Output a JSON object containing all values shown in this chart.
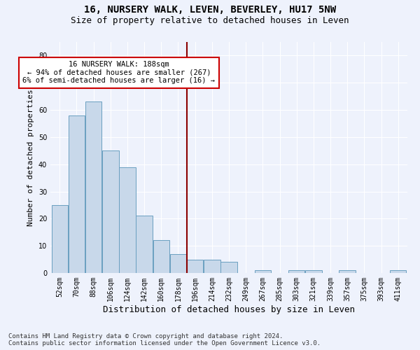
{
  "title": "16, NURSERY WALK, LEVEN, BEVERLEY, HU17 5NW",
  "subtitle": "Size of property relative to detached houses in Leven",
  "xlabel": "Distribution of detached houses by size in Leven",
  "ylabel": "Number of detached properties",
  "bar_color": "#c8d8ea",
  "bar_edge_color": "#6a9fc0",
  "background_color": "#eef2fc",
  "grid_color": "#ffffff",
  "bins": [
    "52sqm",
    "70sqm",
    "88sqm",
    "106sqm",
    "124sqm",
    "142sqm",
    "160sqm",
    "178sqm",
    "196sqm",
    "214sqm",
    "232sqm",
    "249sqm",
    "267sqm",
    "285sqm",
    "303sqm",
    "321sqm",
    "339sqm",
    "357sqm",
    "375sqm",
    "393sqm",
    "411sqm"
  ],
  "values": [
    25,
    58,
    63,
    45,
    39,
    21,
    12,
    7,
    5,
    5,
    4,
    0,
    1,
    0,
    1,
    1,
    0,
    1,
    0,
    0,
    1
  ],
  "vline_color": "#8b0000",
  "vline_pos": 7.5,
  "annotation_text": "16 NURSERY WALK: 188sqm\n← 94% of detached houses are smaller (267)\n6% of semi-detached houses are larger (16) →",
  "annotation_box_color": "#ffffff",
  "annotation_box_edge": "#cc0000",
  "ylim": [
    0,
    85
  ],
  "yticks": [
    0,
    10,
    20,
    30,
    40,
    50,
    60,
    70,
    80
  ],
  "footnote": "Contains HM Land Registry data © Crown copyright and database right 2024.\nContains public sector information licensed under the Open Government Licence v3.0.",
  "title_fontsize": 10,
  "subtitle_fontsize": 9,
  "xlabel_fontsize": 9,
  "ylabel_fontsize": 8,
  "tick_fontsize": 7,
  "annotation_fontsize": 7.5,
  "footnote_fontsize": 6.5
}
